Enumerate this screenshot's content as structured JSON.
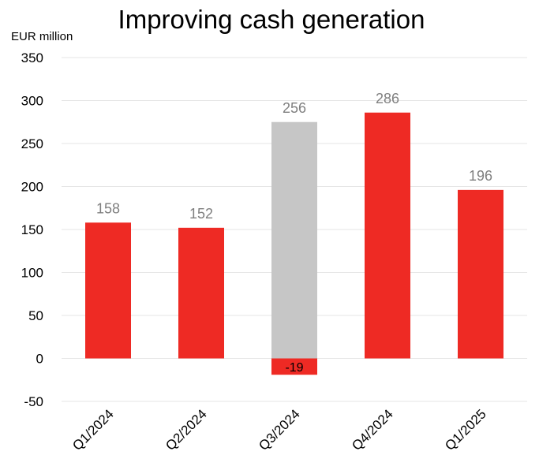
{
  "chart_data": {
    "type": "bar",
    "title": "Improving cash generation",
    "ylabel": "EUR million",
    "xlabel": "",
    "categories": [
      "Q1/2024",
      "Q2/2024",
      "Q3/2024",
      "Q4/2024",
      "Q1/2025"
    ],
    "series": [
      {
        "name": "Cash generation",
        "values": [
          158,
          152,
          256,
          286,
          196
        ]
      }
    ],
    "segments": [
      {
        "category": "Q3/2024",
        "positive_part": 275,
        "negative_part": -19,
        "negative_label": "-19"
      }
    ],
    "data_labels": [
      "158",
      "152",
      "256",
      "286",
      "196"
    ],
    "ylim": [
      -50,
      350
    ],
    "yticks": [
      350,
      300,
      250,
      200,
      150,
      100,
      50,
      0,
      -50
    ],
    "grid": true,
    "legend": "none",
    "colors": {
      "primary": "#ee2a24",
      "neutral": "#c6c6c6",
      "label": "#7f7f7f"
    }
  }
}
